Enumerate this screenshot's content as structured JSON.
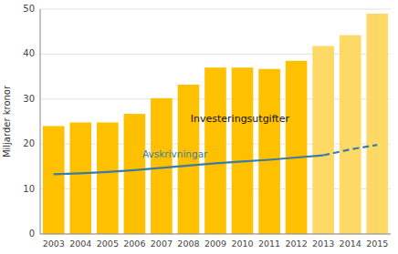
{
  "chart_data": {
    "type": "bar",
    "categories": [
      "2003",
      "2004",
      "2005",
      "2006",
      "2007",
      "2008",
      "2009",
      "2010",
      "2011",
      "2012",
      "2013",
      "2014",
      "2015"
    ],
    "series": [
      {
        "type": "bar",
        "values": [
          24.0,
          24.8,
          24.8,
          26.7,
          30.2,
          33.2,
          37.0,
          37.0,
          36.7,
          38.5,
          41.8,
          44.2,
          49.0
        ],
        "colors": [
          "#FFC000",
          "#FFC000",
          "#FFC000",
          "#FFC000",
          "#FFC000",
          "#FFC000",
          "#FFC000",
          "#FFC000",
          "#FFC000",
          "#FFC000",
          "#FFD966",
          "#FFD966",
          "#FFD966"
        ]
      },
      {
        "type": "line",
        "color": "#3A7CA5",
        "line_style": "solid",
        "values": [
          13.3,
          13.5,
          13.8,
          14.2,
          14.7,
          15.2,
          15.7,
          16.1,
          16.5,
          17.0,
          17.5,
          null,
          null
        ]
      },
      {
        "type": "line",
        "color": "#3A7CA5",
        "line_style": "dashed",
        "values": [
          null,
          null,
          null,
          null,
          null,
          null,
          null,
          null,
          null,
          null,
          17.5,
          18.8,
          19.8
        ]
      }
    ],
    "y_label": "Miljarder kronor",
    "annotations": [
      {
        "text": "Investeringsutgifter"
      },
      {
        "text": "Avskrivningar",
        "color": "#3A7CA5"
      }
    ],
    "ylim": [
      0,
      50
    ],
    "yticks": [
      0,
      10,
      20,
      30,
      40,
      50
    ],
    "grid": true
  }
}
